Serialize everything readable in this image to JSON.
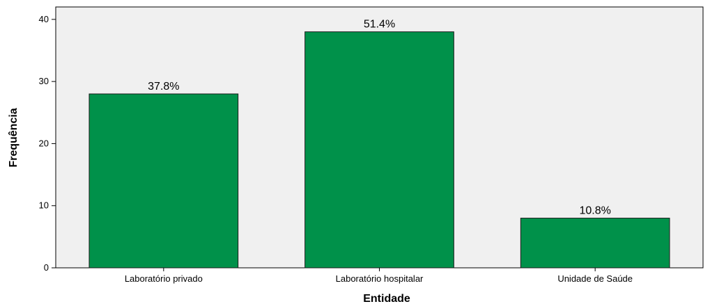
{
  "chart_data": {
    "type": "bar",
    "title": "",
    "xlabel": "Entidade",
    "ylabel": "Frequência",
    "categories": [
      "Laboratório privado",
      "Laboratório hospitalar",
      "Unidade de Saúde"
    ],
    "values": [
      28,
      38,
      8
    ],
    "data_labels": [
      "37.8%",
      "51.4%",
      "10.8%"
    ],
    "ylim": [
      0,
      42
    ],
    "yticks": [
      0,
      10,
      20,
      30,
      40
    ],
    "ytick_labels": [
      "0",
      "10",
      "20",
      "30",
      "40"
    ],
    "grid": false,
    "legend": "none",
    "colors": {
      "bar": "#00914a",
      "bar_edge": "#1a1a1a",
      "plot_background": "#f0f0f0"
    }
  }
}
